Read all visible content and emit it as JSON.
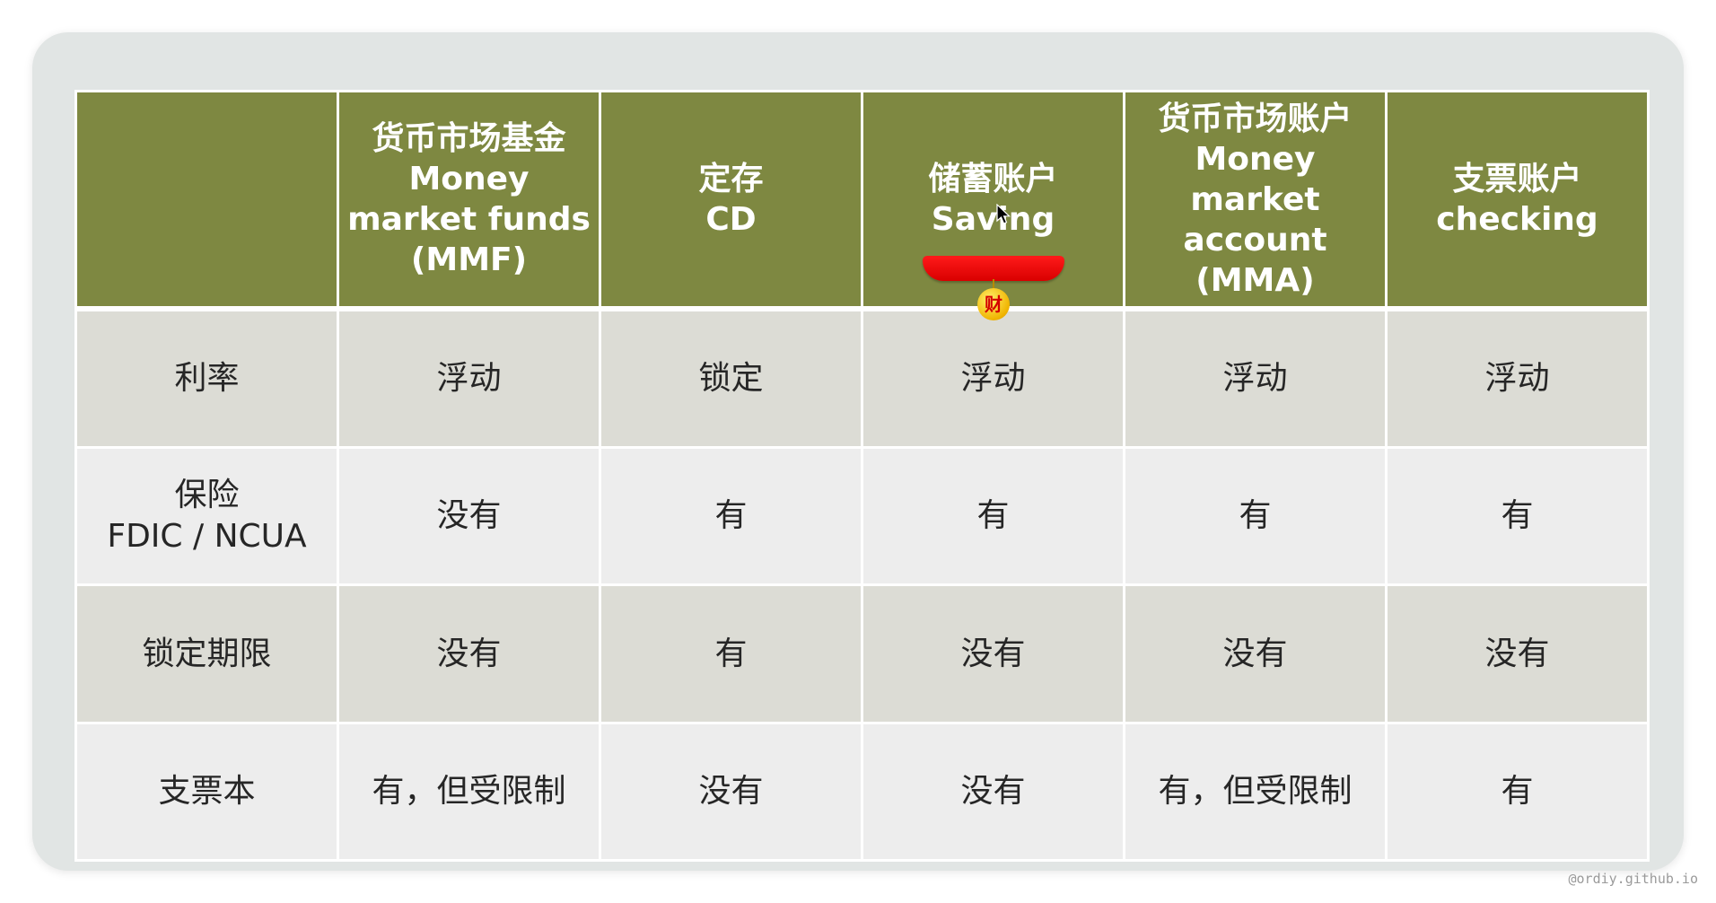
{
  "table": {
    "headers": [
      {
        "lines": [
          ""
        ]
      },
      {
        "lines": [
          "货币市场基金",
          "Money",
          "market funds",
          "(MMF)"
        ]
      },
      {
        "lines": [
          "定存",
          "CD"
        ]
      },
      {
        "lines": [
          "储蓄账户",
          "Saving"
        ]
      },
      {
        "lines": [
          "货币市场账户",
          "Money",
          "market",
          "account",
          "(MMA)"
        ]
      },
      {
        "lines": [
          "支票账户",
          "checking"
        ]
      }
    ],
    "rows": [
      {
        "label": [
          "利率"
        ],
        "values": [
          "浮动",
          "锁定",
          "浮动",
          "浮动",
          "浮动"
        ]
      },
      {
        "label": [
          "保险",
          "FDIC / NCUA"
        ],
        "values": [
          "没有",
          "有",
          "有",
          "有",
          "有"
        ]
      },
      {
        "label": [
          "锁定期限"
        ],
        "values": [
          "没有",
          "有",
          "没有",
          "没有",
          "没有"
        ]
      },
      {
        "label": [
          "支票本"
        ],
        "values": [
          "有，但受限制",
          "没有",
          "没有",
          "有，但受限制",
          "有"
        ]
      }
    ]
  },
  "decoration": {
    "coin_char": "财",
    "icon": "red-ribbon-gold-coin-icon",
    "cursor_icon": "mouse-pointer-icon"
  },
  "watermark": "@ordiy.github.io",
  "colors": {
    "header_bg": "#7e8841",
    "row_shade": "#dcdcd5",
    "row_plain": "#ededed",
    "slide_bg": "#e1e5e4",
    "ribbon_red": "#ff1a1a",
    "coin_gold": "#f0b400"
  }
}
